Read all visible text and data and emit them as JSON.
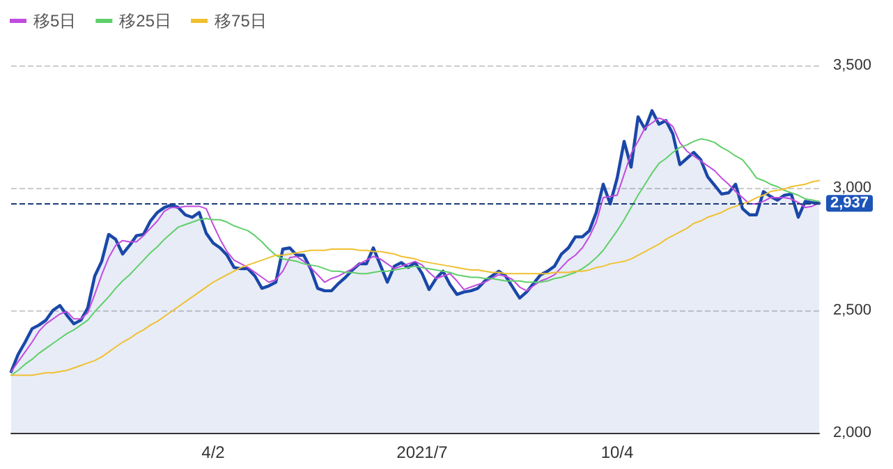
{
  "chart_data": {
    "type": "line",
    "categories": [
      null,
      null,
      null,
      null,
      null,
      null,
      null,
      null,
      null,
      null,
      null,
      null,
      null,
      null,
      null,
      null,
      null,
      null,
      null,
      null,
      null,
      null,
      null,
      null,
      null,
      null,
      null,
      null,
      null,
      "4/2",
      null,
      null,
      null,
      null,
      null,
      null,
      null,
      null,
      null,
      null,
      null,
      null,
      null,
      null,
      null,
      null,
      null,
      null,
      null,
      null,
      null,
      null,
      null,
      null,
      null,
      null,
      null,
      null,
      null,
      "2021/7",
      null,
      null,
      null,
      null,
      null,
      null,
      null,
      null,
      null,
      null,
      null,
      null,
      null,
      null,
      null,
      null,
      null,
      null,
      null,
      null,
      null,
      null,
      null,
      null,
      null,
      null,
      null,
      "10/4",
      null,
      null,
      null,
      null,
      null,
      null,
      null,
      null,
      null,
      null,
      null,
      null,
      null,
      null,
      null,
      null,
      null,
      null,
      null,
      null,
      null,
      null,
      null,
      null,
      null,
      null,
      null,
      null,
      null
    ],
    "ylim": [
      2000,
      3500
    ],
    "yticks": [
      {
        "value": 2000,
        "label": "2,000"
      },
      {
        "value": 2500,
        "label": "2,500"
      },
      {
        "value": 3000,
        "label": "3,000"
      },
      {
        "value": 3500,
        "label": "3,500"
      }
    ],
    "series": [
      {
        "type": "area",
        "color": "#1a47a8",
        "values": [
          2250,
          2320,
          2370,
          2425,
          2440,
          2460,
          2500,
          2520,
          2480,
          2445,
          2460,
          2510,
          2640,
          2700,
          2810,
          2790,
          2730,
          2765,
          2805,
          2810,
          2865,
          2900,
          2920,
          2930,
          2920,
          2890,
          2880,
          2900,
          2815,
          2775,
          2755,
          2725,
          2675,
          2670,
          2670,
          2640,
          2590,
          2600,
          2615,
          2750,
          2755,
          2725,
          2725,
          2670,
          2590,
          2580,
          2580,
          2610,
          2635,
          2665,
          2690,
          2690,
          2755,
          2685,
          2615,
          2680,
          2695,
          2675,
          2695,
          2650,
          2585,
          2630,
          2660,
          2605,
          2565,
          2575,
          2580,
          2590,
          2620,
          2640,
          2660,
          2640,
          2595,
          2550,
          2575,
          2610,
          2645,
          2660,
          2680,
          2730,
          2755,
          2800,
          2800,
          2825,
          2900,
          3015,
          2935,
          3040,
          3190,
          3085,
          3290,
          3240,
          3315,
          3260,
          3275,
          3220,
          3095,
          3120,
          3145,
          3115,
          3045,
          3010,
          2975,
          2980,
          3015,
          2915,
          2890,
          2890,
          2985,
          2965,
          2950,
          2970,
          2975,
          2880,
          2945,
          2940,
          2937
        ]
      },
      {
        "name": "移5日",
        "color": "#c14be0",
        "values": [
          2250,
          2290,
          2330,
          2370,
          2415,
          2445,
          2465,
          2485,
          2495,
          2465,
          2465,
          2490,
          2565,
          2645,
          2715,
          2765,
          2785,
          2780,
          2780,
          2805,
          2835,
          2865,
          2905,
          2920,
          2920,
          2925,
          2925,
          2925,
          2915,
          2850,
          2790,
          2740,
          2705,
          2690,
          2675,
          2655,
          2635,
          2615,
          2625,
          2660,
          2715,
          2720,
          2700,
          2675,
          2645,
          2615,
          2630,
          2640,
          2655,
          2670,
          2690,
          2705,
          2720,
          2710,
          2690,
          2670,
          2680,
          2690,
          2700,
          2685,
          2655,
          2630,
          2640,
          2650,
          2620,
          2585,
          2595,
          2605,
          2615,
          2630,
          2645,
          2640,
          2625,
          2595,
          2580,
          2600,
          2620,
          2630,
          2645,
          2675,
          2705,
          2725,
          2755,
          2800,
          2860,
          2960,
          2965,
          2970,
          3055,
          3140,
          3190,
          3245,
          3265,
          3285,
          3275,
          3250,
          3185,
          3150,
          3130,
          3110,
          3090,
          3070,
          3040,
          3015,
          2985,
          2960,
          2935,
          2935,
          2945,
          2960,
          2960,
          2960,
          2955,
          2940,
          2920,
          2925,
          2937
        ]
      },
      {
        "name": "移25日",
        "color": "#5fcf6a",
        "values": [
          2235,
          2255,
          2280,
          2300,
          2325,
          2345,
          2365,
          2385,
          2405,
          2420,
          2440,
          2460,
          2495,
          2525,
          2555,
          2590,
          2620,
          2645,
          2675,
          2705,
          2735,
          2760,
          2790,
          2815,
          2840,
          2850,
          2860,
          2870,
          2875,
          2870,
          2870,
          2860,
          2845,
          2835,
          2825,
          2805,
          2780,
          2750,
          2725,
          2710,
          2705,
          2700,
          2690,
          2685,
          2680,
          2670,
          2660,
          2660,
          2655,
          2655,
          2650,
          2650,
          2655,
          2660,
          2660,
          2665,
          2670,
          2675,
          2680,
          2675,
          2670,
          2665,
          2660,
          2655,
          2645,
          2640,
          2635,
          2635,
          2630,
          2630,
          2625,
          2620,
          2620,
          2620,
          2615,
          2615,
          2615,
          2620,
          2630,
          2635,
          2645,
          2655,
          2670,
          2690,
          2715,
          2745,
          2785,
          2825,
          2870,
          2920,
          2970,
          3015,
          3060,
          3100,
          3120,
          3145,
          3165,
          3175,
          3190,
          3200,
          3195,
          3185,
          3165,
          3150,
          3130,
          3115,
          3080,
          3040,
          3030,
          3015,
          3005,
          2990,
          2980,
          2970,
          2955,
          2950,
          2945
        ]
      },
      {
        "name": "移75日",
        "color": "#f0c030",
        "values": [
          2235,
          2235,
          2235,
          2235,
          2240,
          2245,
          2245,
          2250,
          2255,
          2265,
          2275,
          2285,
          2295,
          2310,
          2330,
          2350,
          2370,
          2385,
          2405,
          2420,
          2440,
          2455,
          2475,
          2495,
          2515,
          2535,
          2555,
          2575,
          2595,
          2615,
          2630,
          2645,
          2660,
          2675,
          2685,
          2695,
          2705,
          2715,
          2725,
          2725,
          2730,
          2735,
          2740,
          2745,
          2745,
          2745,
          2750,
          2750,
          2750,
          2750,
          2745,
          2745,
          2740,
          2740,
          2735,
          2730,
          2720,
          2715,
          2710,
          2700,
          2695,
          2690,
          2685,
          2680,
          2675,
          2670,
          2665,
          2665,
          2660,
          2655,
          2655,
          2650,
          2650,
          2650,
          2650,
          2650,
          2650,
          2650,
          2655,
          2655,
          2655,
          2660,
          2660,
          2665,
          2675,
          2680,
          2690,
          2695,
          2700,
          2710,
          2725,
          2740,
          2755,
          2770,
          2790,
          2805,
          2820,
          2835,
          2855,
          2865,
          2880,
          2890,
          2900,
          2915,
          2925,
          2935,
          2945,
          2960,
          2970,
          2985,
          2990,
          2995,
          3005,
          3010,
          3015,
          3025,
          3030
        ]
      }
    ],
    "ref_lines": [
      {
        "axis": "y",
        "value": 2937,
        "label": "2,937",
        "color": "#1a3a7a",
        "line_style": "dashed"
      }
    ],
    "grid": "y",
    "legend": "top left",
    "marker": "none",
    "line_style": "solid"
  }
}
